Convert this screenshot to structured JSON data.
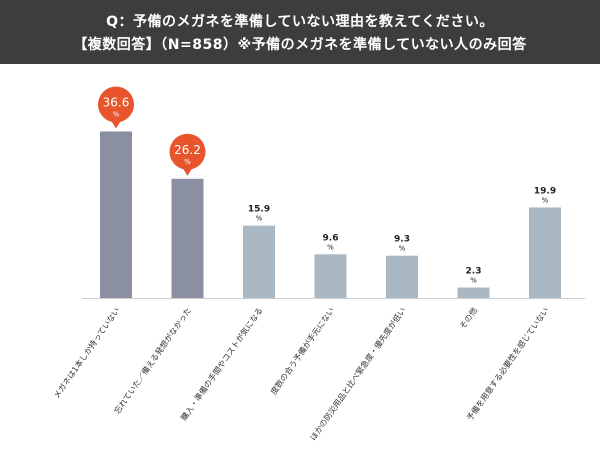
{
  "header": {
    "line1": "Q：予備のメガネを準備していない理由を教えてください。",
    "line2": "【複数回答】（N=858）※予備のメガネを準備していない人のみ回答"
  },
  "colors": {
    "header_bg": "#3d3d3d",
    "bar_highlight": "#8a8fa3",
    "bar_normal": "#aab8c4",
    "callout": "#e8552d",
    "axis": "#cccccc"
  },
  "chart_data": {
    "type": "bar",
    "categories": [
      "メガネは1本しか持っていない",
      "忘れていた／備える発想がなかった",
      "購入・準備の手間やコストが気になる",
      "度数の合う予備が手元にない",
      "ほかの防災用品と比べ緊急度・優先度が低い",
      "その他",
      "予備を用意する必要性を感じていない"
    ],
    "values": [
      36.6,
      26.2,
      15.9,
      9.6,
      9.3,
      2.3,
      19.9
    ],
    "unit": "%",
    "highlight": [
      true,
      true,
      false,
      false,
      false,
      false,
      false
    ],
    "ylim": [
      0,
      40
    ],
    "grid": false,
    "legend": "none"
  }
}
